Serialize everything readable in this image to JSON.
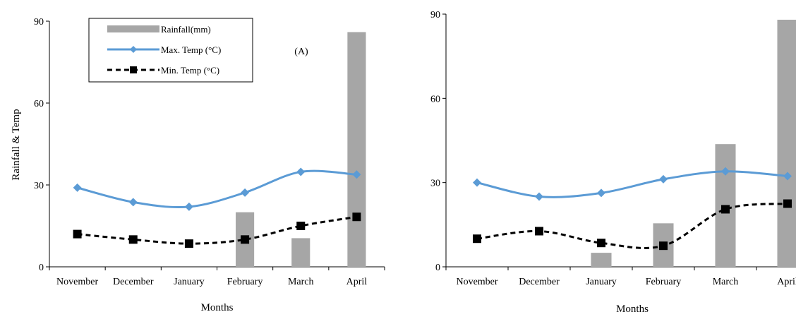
{
  "chart_data": [
    {
      "type": "bar-line",
      "panel_label": "(A)",
      "categories": [
        "November",
        "December",
        "January",
        "February",
        "March",
        "April"
      ],
      "ylim": [
        0,
        90
      ],
      "yticks": [
        0,
        30,
        60,
        90
      ],
      "xlabel": "Months",
      "ylabel": "Rainfall & Temp",
      "grid": false,
      "legend_position": "top-left",
      "series": [
        {
          "name": "Rainfall(mm)",
          "kind": "bar",
          "color": "#a6a6a6",
          "values": [
            0,
            0,
            0,
            20,
            10.5,
            86
          ]
        },
        {
          "name": "Max. Temp (°C)",
          "kind": "line",
          "color": "#5b9bd5",
          "marker": "diamond",
          "values": [
            29,
            23.7,
            22,
            27.2,
            34.8,
            33.8
          ]
        },
        {
          "name": "Min. Temp (°C)",
          "kind": "dashed-line",
          "color": "#000000",
          "marker": "square",
          "values": [
            12,
            10,
            8.5,
            10,
            15,
            18.3
          ]
        }
      ]
    },
    {
      "type": "bar-line",
      "categories": [
        "November",
        "December",
        "January",
        "February",
        "March",
        "April"
      ],
      "ylim": [
        0,
        90
      ],
      "yticks": [
        0,
        30,
        60,
        90
      ],
      "xlabel": "Months",
      "grid": false,
      "series": [
        {
          "kind": "bar",
          "color": "#a6a6a6",
          "values": [
            0,
            0,
            5,
            15.5,
            43.7,
            88
          ]
        },
        {
          "kind": "line",
          "color": "#5b9bd5",
          "marker": "diamond",
          "values": [
            30,
            25,
            26.3,
            31.2,
            34,
            32.3
          ]
        },
        {
          "kind": "dashed-line",
          "color": "#000000",
          "marker": "square",
          "values": [
            10,
            12.7,
            8.5,
            7.5,
            20.5,
            22.5
          ]
        }
      ]
    }
  ]
}
